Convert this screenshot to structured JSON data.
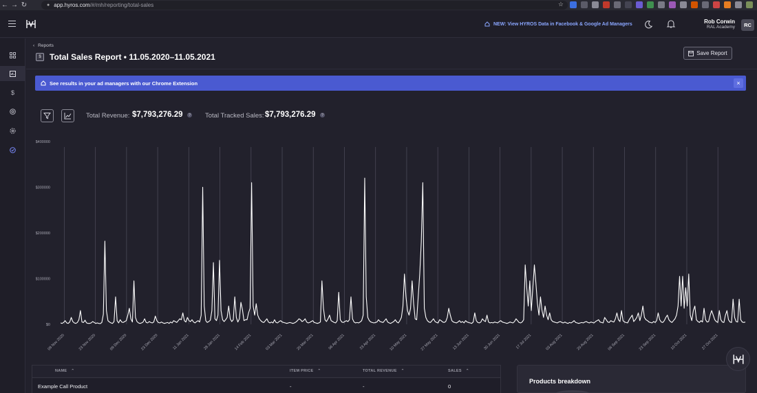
{
  "browser": {
    "url_host": "app.hyros.com",
    "url_path": "/#/mh/reporting/total-sales"
  },
  "header": {
    "announcement": "NEW: View HYROS Data in Facebook & Google Ad Managers",
    "user_name": "Rob Corwin",
    "user_org": "RAL Academy",
    "avatar_initials": "RC"
  },
  "page": {
    "breadcrumb": "Reports",
    "title": "Total Sales Report • 11.05.2020–11.05.2021",
    "save_label": "Save Report",
    "banner_text": "See results in your ad managers with our Chrome Extension",
    "banner_close": "×"
  },
  "metrics": {
    "revenue_label": "Total Revenue:",
    "revenue_value": "$7,793,276.29",
    "sales_label": "Total Tracked Sales:",
    "sales_value": "$7,793,276.29",
    "help_glyph": "?"
  },
  "chart_data": {
    "type": "line",
    "ylim": [
      0,
      400000
    ],
    "y_ticks": [
      "$0",
      "$100000",
      "$200000",
      "$300000",
      "$400000"
    ],
    "y_tick_values": [
      0,
      100000,
      200000,
      300000,
      400000
    ],
    "x_ticks": [
      "09 Nov 2020",
      "23 Nov 2020",
      "09 Dec 2020",
      "23 Dec 2020",
      "11 Jan 2021",
      "28 Jan 2021",
      "14 Feb 2021",
      "03 Mar 2021",
      "20 Mar 2021",
      "06 Apr 2021",
      "23 Apr 2021",
      "10 May 2021",
      "27 May 2021",
      "13 Jun 2021",
      "30 Jun 2021",
      "17 Jul 2021",
      "03 Aug 2021",
      "20 Aug 2021",
      "06 Sep 2021",
      "23 Sep 2021",
      "10 Oct 2021",
      "27 Oct 2021"
    ],
    "series": [
      {
        "values": [
          3000,
          2000,
          4000,
          8000,
          3000,
          2000,
          5000,
          15000,
          6000,
          3000,
          2000,
          4000,
          10000,
          30000,
          5000,
          4000,
          9000,
          3000,
          2000,
          2000,
          3000,
          6000,
          4000,
          2000,
          3000,
          2000,
          1500,
          4000,
          22000,
          182000,
          30000,
          8000,
          5000,
          3000,
          2000,
          6000,
          60000,
          8000,
          3000,
          10000,
          5000,
          4000,
          6000,
          8000,
          20000,
          35000,
          12000,
          5000,
          95000,
          15000,
          6000,
          3000,
          2000,
          3000,
          5000,
          12000,
          4000,
          3000,
          6000,
          4000,
          3000,
          5000,
          18000,
          8000,
          4000,
          3000,
          5000,
          3000,
          2000,
          3000,
          4000,
          2000,
          5000,
          3000,
          8000,
          6000,
          4000,
          8000,
          12000,
          10000,
          25000,
          8000,
          5000,
          15000,
          8000,
          6000,
          10000,
          5000,
          3000,
          6000,
          8000,
          5000,
          20000,
          300000,
          40000,
          8000,
          4000,
          6000,
          9000,
          30000,
          135000,
          12000,
          8000,
          20000,
          140000,
          30000,
          10000,
          6000,
          10000,
          15000,
          40000,
          12000,
          6000,
          10000,
          60000,
          15000,
          5000,
          12000,
          48000,
          32000,
          8000,
          10000,
          10000,
          25000,
          35000,
          310000,
          40000,
          20000,
          45000,
          20000,
          12000,
          8000,
          5000,
          4000,
          8000,
          12000,
          5000,
          3000,
          5000,
          3000,
          10000,
          4000,
          3000,
          6000,
          8000,
          5000,
          4000,
          3000,
          2000,
          3000,
          4000,
          3000,
          2000,
          3000,
          5000,
          8000,
          12000,
          10000,
          6000,
          8000,
          12000,
          5000,
          3000,
          4000,
          6000,
          8000,
          4000,
          3000,
          2000,
          3000,
          5000,
          95000,
          35000,
          10000,
          6000,
          12000,
          20000,
          8000,
          6000,
          4000,
          3000,
          8000,
          70000,
          10000,
          5000,
          4000,
          6000,
          8000,
          6000,
          10000,
          60000,
          12000,
          5000,
          3000,
          4000,
          3000,
          5000,
          8000,
          20000,
          320000,
          60000,
          15000,
          8000,
          5000,
          4000,
          3000,
          4000,
          5000,
          10000,
          6000,
          5000,
          4000,
          8000,
          12000,
          5000,
          3000,
          2000,
          4000,
          6000,
          10000,
          5000,
          3000,
          8000,
          15000,
          40000,
          110000,
          60000,
          30000,
          20000,
          35000,
          95000,
          45000,
          12000,
          10000,
          60000,
          110000,
          180000,
          310000,
          35000,
          15000,
          8000,
          5000,
          4000,
          8000,
          12000,
          6000,
          4000,
          3000,
          10000,
          8000,
          5000,
          4000,
          6000,
          15000,
          35000,
          20000,
          8000,
          5000,
          4000,
          3000,
          5000,
          8000,
          4000,
          6000,
          3000,
          8000,
          5000,
          4000,
          3000,
          2000,
          5000,
          25000,
          8000,
          4000,
          3000,
          5000,
          12000,
          8000,
          6000,
          20000,
          5000,
          3000,
          4000,
          3000,
          5000,
          4000,
          3000,
          6000,
          8000,
          5000,
          4000,
          3000,
          2000,
          3000,
          5000,
          4000,
          3000,
          6000,
          12000,
          8000,
          4000,
          3000,
          5000,
          10000,
          130000,
          80000,
          40000,
          95000,
          30000,
          80000,
          130000,
          90000,
          45000,
          20000,
          60000,
          30000,
          15000,
          40000,
          20000,
          10000,
          25000,
          10000,
          6000,
          5000,
          4000,
          3000,
          5000,
          6000,
          4000,
          3000,
          5000,
          3000,
          2000,
          4000,
          3000,
          5000,
          8000,
          4000,
          3000,
          2000,
          3000,
          4000,
          3000,
          5000,
          6000,
          4000,
          3000,
          5000,
          4000,
          3000,
          6000,
          8000,
          10000,
          5000,
          4000,
          3000,
          15000,
          10000,
          5000,
          4000,
          8000,
          6000,
          5000,
          12000,
          25000,
          10000,
          6000,
          30000,
          8000,
          5000,
          4000,
          3000,
          10000,
          15000,
          20000,
          6000,
          10000,
          15000,
          25000,
          8000,
          20000,
          40000,
          15000,
          10000,
          8000,
          5000,
          4000,
          3000,
          6000,
          4000,
          8000,
          25000,
          10000,
          5000,
          4000,
          8000,
          15000,
          20000,
          10000,
          6000,
          4000,
          8000,
          12000,
          20000,
          40000,
          105000,
          40000,
          105000,
          35000,
          80000,
          40000,
          110000,
          20000,
          8000,
          30000,
          40000,
          10000,
          6000,
          4000,
          8000,
          5000,
          35000,
          10000,
          5000,
          6000,
          20000,
          30000,
          20000,
          10000,
          6000,
          4000,
          30000,
          10000,
          5000,
          4000,
          20000,
          30000,
          10000,
          5000,
          4000,
          55000,
          15000,
          6000,
          5000,
          55000,
          10000,
          5000,
          4000,
          5000
        ]
      }
    ]
  },
  "table": {
    "columns": [
      "NAME",
      "ITEM PRICE",
      "TOTAL REVENUE",
      "SALES"
    ],
    "sort_glyph": "⌃",
    "rows": [
      {
        "name": "Example Call Product",
        "price": "-",
        "revenue": "-",
        "sales": "0"
      }
    ]
  },
  "products": {
    "title": "Products breakdown"
  },
  "colors": {
    "accent": "#4a5ad1",
    "background": "#22212c",
    "line": "#ffffff"
  }
}
